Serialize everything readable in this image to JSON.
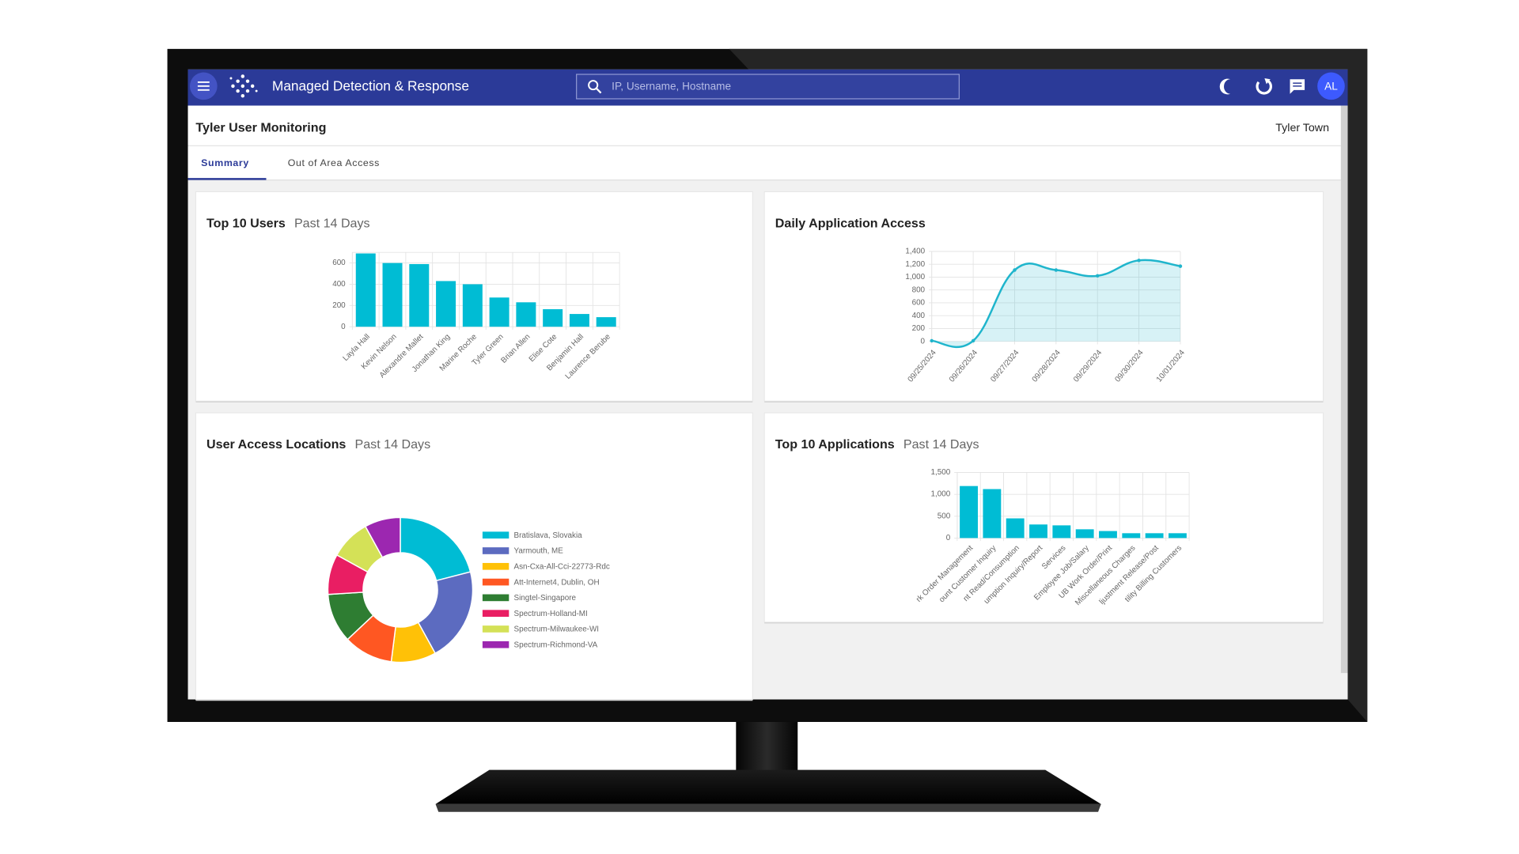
{
  "header": {
    "title": "Managed Detection & Response",
    "search_placeholder": "IP, Username, Hostname",
    "avatar": "AL"
  },
  "page": {
    "title": "Tyler User Monitoring",
    "organization": "Tyler Town"
  },
  "tabs": [
    "Summary",
    "Out of Area Access"
  ],
  "panels": [
    {
      "title": "Top 10 Users",
      "subtitle": "Past 14 Days",
      "chart_data": {
        "type": "bar",
        "color": "#00bcd4",
        "categories": [
          "Layla Hall",
          "Kevin Nelson",
          "Alexandre Mallet",
          "Jonathan King",
          "Marine Roche",
          "Tyler Green",
          "Brian Allen",
          "Elise Cote",
          "Benjamin Hall",
          "Laurence Berube"
        ],
        "values": [
          690,
          600,
          590,
          430,
          400,
          275,
          230,
          165,
          120,
          90
        ],
        "ylim": [
          0,
          700
        ],
        "yticks": [
          0,
          200,
          400,
          600
        ],
        "grid": true
      }
    },
    {
      "title": "Daily Application Access",
      "chart_data": {
        "type": "line",
        "color": "#1fb5cc",
        "categories": [
          "09/25/2024",
          "09/26/2024",
          "09/27/2024",
          "09/28/2024",
          "09/29/2024",
          "09/30/2024",
          "10/01/2024"
        ],
        "values": [
          10,
          10,
          1110,
          1110,
          1020,
          1260,
          1170
        ],
        "ylim": [
          0,
          1400
        ],
        "yticks": [
          0,
          200,
          400,
          600,
          800,
          {
            "value": 1000,
            "label": "1,000"
          },
          {
            "value": 1200,
            "label": "1,200"
          },
          {
            "value": 1400,
            "label": "1,400"
          }
        ],
        "grid": true
      }
    },
    {
      "title": "User Access Locations",
      "subtitle": "Past 14 Days",
      "chart_data": {
        "type": "doughnut",
        "categories": [
          "Bratislava, Slovakia",
          "Yarmouth, ME",
          "Asn-Cxa-All-Cci-22773-Rdc",
          "Att-Internet4, Dublin, OH",
          "Singtel-Singapore",
          "Spectrum-Holland-MI",
          "Spectrum-Milwaukee-WI",
          "Spectrum-Richmond-VA"
        ],
        "values": [
          21,
          21,
          10,
          11,
          11,
          9,
          9,
          8
        ],
        "colors": [
          "#00bcd4",
          "#5c6bc0",
          "#ffc107",
          "#ff5722",
          "#2e7d32",
          "#e91e63",
          "#d4e157",
          "#9c27b0"
        ]
      }
    },
    {
      "title": "Top 10 Applications",
      "subtitle": "Past 14 Days",
      "chart_data": {
        "type": "bar",
        "color": "#00bcd4",
        "categories": [
          "rk Order Management",
          "ount Customer Inquiry",
          "nt Read/Consumption",
          "umption Inquiry/Report",
          "Services",
          "Employee Job/Salary",
          "UB Work Order/Print",
          "Miscellaneous Charges",
          "ljustment Release/Post",
          "tility Billing Customers"
        ],
        "values": [
          1190,
          1120,
          450,
          310,
          290,
          200,
          160,
          110,
          110,
          110
        ],
        "ylim": [
          0,
          1500
        ],
        "yticks": [
          0,
          500,
          {
            "value": 1000,
            "label": "1,000"
          },
          {
            "value": 1500,
            "label": "1,500"
          }
        ],
        "grid": true
      }
    }
  ]
}
